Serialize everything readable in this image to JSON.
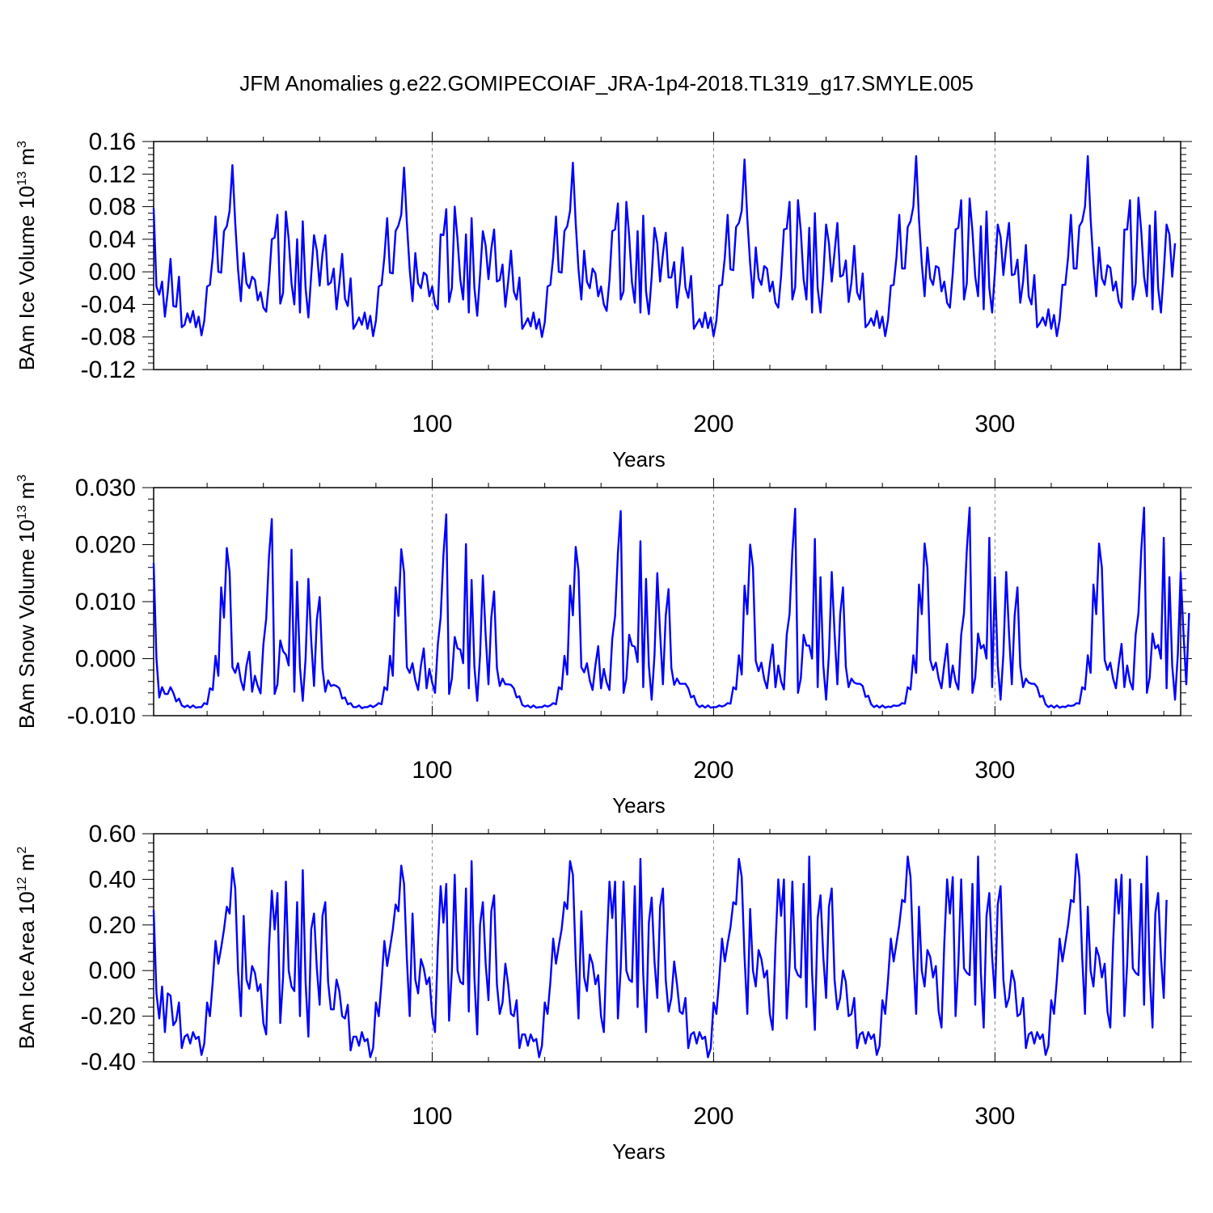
{
  "figure": {
    "title": "JFM Anomalies g.e22.GOMIPECOIAF_JRA-1p4-2018.TL319_g17.SMYLE.005"
  },
  "colors": {
    "series": "#0000ff",
    "axis": "#000000",
    "reference_lines": "#888888"
  },
  "chart_data": [
    {
      "type": "line",
      "xlabel": "Years",
      "ylabel": "BAm Ice Volume 10",
      "ylabel_exp": "13",
      "ylabel_unit": " m",
      "ylabel_unit_exp": "3",
      "xlim": [
        1,
        366
      ],
      "ylim": [
        -0.12,
        0.16
      ],
      "x_ticks": [
        100,
        200,
        300
      ],
      "x_tick_labels": [
        "100",
        "200",
        "300"
      ],
      "y_ticks": [
        -0.12,
        -0.08,
        -0.04,
        0.0,
        0.04,
        0.08,
        0.12,
        0.16
      ],
      "y_tick_labels": [
        "-0.12",
        "-0.08",
        "-0.04",
        "0.00",
        "0.04",
        "0.08",
        "0.12",
        "0.16"
      ],
      "reference_x": [
        100,
        200,
        300
      ],
      "grid": false,
      "x_start": 1,
      "values": [
        0.078,
        -0.018,
        -0.028,
        -0.012,
        -0.055,
        -0.025,
        0.016,
        -0.042,
        -0.043,
        -0.006,
        -0.068,
        -0.065,
        -0.051,
        -0.062,
        -0.048,
        -0.068,
        -0.055,
        -0.078,
        -0.06,
        -0.018,
        -0.016,
        0.018,
        0.068,
        0.0,
        -0.001,
        0.05,
        0.056,
        0.075,
        0.131,
        0.06,
        0.003,
        -0.036,
        0.023,
        -0.014,
        -0.02,
        -0.006,
        -0.01,
        -0.035,
        -0.025,
        -0.044,
        -0.049,
        -0.012,
        0.04,
        0.042,
        0.07,
        -0.039,
        -0.026,
        0.074,
        0.04,
        -0.014,
        -0.04,
        0.04,
        -0.05,
        0.062,
        -0.02,
        -0.056,
        -0.004,
        0.045,
        0.026,
        -0.017,
        0.022,
        0.045,
        -0.016,
        -0.013,
        0.004,
        -0.046,
        -0.014,
        0.022,
        -0.033,
        -0.042,
        -0.008,
        -0.07,
        -0.064,
        -0.056,
        -0.065,
        -0.05,
        -0.07,
        -0.054,
        -0.079,
        -0.06,
        -0.018,
        -0.016,
        0.018,
        0.066,
        -0.001,
        -0.002,
        0.05,
        0.057,
        0.07,
        0.128,
        0.06,
        0.003,
        -0.036,
        0.023,
        -0.014,
        -0.02,
        -0.001,
        -0.004,
        -0.03,
        -0.018,
        -0.04,
        -0.046,
        0.046,
        0.045,
        0.077,
        -0.037,
        -0.02,
        0.08,
        0.04,
        -0.01,
        -0.034,
        0.046,
        -0.05,
        0.066,
        -0.02,
        -0.054,
        -0.004,
        0.05,
        0.032,
        -0.009,
        0.028,
        0.052,
        -0.012,
        -0.01,
        0.009,
        -0.043,
        -0.012,
        0.026,
        -0.024,
        -0.034,
        -0.007,
        -0.07,
        -0.064,
        -0.057,
        -0.067,
        -0.05,
        -0.07,
        -0.058,
        -0.08,
        -0.062,
        -0.018,
        -0.016,
        0.018,
        0.068,
        0.0,
        -0.001,
        0.05,
        0.056,
        0.075,
        0.134,
        0.06,
        0.003,
        -0.034,
        0.026,
        -0.012,
        -0.02,
        0.004,
        -0.002,
        -0.03,
        -0.018,
        -0.04,
        -0.048,
        -0.01,
        0.05,
        0.052,
        0.084,
        -0.034,
        -0.024,
        0.086,
        0.044,
        -0.013,
        -0.038,
        0.05,
        -0.05,
        0.069,
        -0.024,
        -0.052,
        -0.006,
        0.054,
        0.035,
        -0.012,
        0.022,
        0.048,
        -0.007,
        -0.007,
        0.012,
        -0.044,
        -0.014,
        0.03,
        -0.019,
        -0.032,
        -0.005,
        -0.07,
        -0.064,
        -0.058,
        -0.068,
        -0.05,
        -0.069,
        -0.056,
        -0.079,
        -0.06,
        -0.017,
        -0.016,
        0.018,
        0.07,
        0.003,
        0.002,
        0.055,
        0.06,
        0.075,
        0.138,
        0.065,
        0.01,
        -0.032,
        0.03,
        -0.008,
        -0.016,
        0.007,
        0.004,
        -0.024,
        -0.012,
        -0.038,
        -0.044,
        -0.005,
        0.052,
        0.053,
        0.086,
        -0.034,
        -0.019,
        0.088,
        0.05,
        -0.009,
        -0.034,
        0.054,
        -0.05,
        0.072,
        -0.02,
        -0.05,
        -0.004,
        0.058,
        0.035,
        -0.012,
        0.024,
        0.06,
        -0.006,
        -0.004,
        0.014,
        -0.037,
        -0.013,
        0.032,
        -0.025,
        -0.034,
        -0.002,
        -0.068,
        -0.064,
        -0.057,
        -0.066,
        -0.048,
        -0.069,
        -0.055,
        -0.079,
        -0.059,
        -0.017,
        -0.016,
        0.018,
        0.07,
        0.004,
        0.004,
        0.055,
        0.062,
        0.08,
        0.142,
        0.065,
        0.01,
        -0.03,
        0.03,
        -0.008,
        -0.016,
        0.007,
        0.005,
        -0.024,
        -0.012,
        -0.038,
        -0.044,
        -0.002,
        0.052,
        0.054,
        0.088,
        -0.034,
        -0.014,
        0.09,
        0.05,
        -0.006,
        -0.03,
        0.056,
        -0.046,
        0.074,
        -0.02,
        -0.05,
        0.0,
        0.058,
        0.043,
        -0.004,
        0.03,
        0.06,
        -0.004,
        -0.003,
        0.015,
        -0.038,
        -0.012,
        0.033,
        -0.03,
        -0.04,
        -0.004,
        -0.068,
        -0.063,
        -0.056,
        -0.066,
        -0.046,
        -0.07,
        -0.053,
        -0.079,
        -0.059,
        -0.016,
        -0.016,
        0.018,
        0.07,
        0.004,
        0.004,
        0.056,
        0.062,
        0.08,
        0.142,
        0.065,
        0.01,
        -0.03,
        0.03,
        -0.008,
        -0.016,
        0.008,
        0.005,
        -0.023,
        -0.012,
        -0.036,
        -0.044,
        0.052,
        0.052,
        0.088,
        -0.034,
        -0.014,
        0.091,
        0.05,
        -0.006,
        -0.03,
        0.057,
        -0.046,
        0.074,
        -0.02,
        -0.05,
        0.0,
        0.058,
        0.046,
        -0.006,
        0.035
      ]
    },
    {
      "type": "line",
      "xlabel": "Years",
      "ylabel": "BAm Snow Volume 10",
      "ylabel_exp": "13",
      "ylabel_unit": " m",
      "ylabel_unit_exp": "3",
      "xlim": [
        1,
        366
      ],
      "ylim": [
        -0.01,
        0.03
      ],
      "x_ticks": [
        100,
        200,
        300
      ],
      "x_tick_labels": [
        "100",
        "200",
        "300"
      ],
      "y_ticks": [
        -0.01,
        0.0,
        0.01,
        0.02,
        0.03
      ],
      "y_tick_labels": [
        "-0.010",
        "0.000",
        "0.010",
        "0.020",
        "0.030"
      ],
      "reference_x": [
        100,
        200,
        300
      ],
      "grid": false,
      "x_start": 1,
      "values": [
        0.0168,
        0.0,
        -0.0068,
        -0.005,
        -0.0062,
        -0.0062,
        -0.005,
        -0.006,
        -0.0075,
        -0.007,
        -0.0082,
        -0.0085,
        -0.0082,
        -0.0086,
        -0.0082,
        -0.0086,
        -0.0085,
        -0.0085,
        -0.0078,
        -0.008,
        -0.0052,
        -0.0055,
        0.0005,
        -0.003,
        0.0125,
        0.0072,
        0.0194,
        0.0152,
        -0.0015,
        -0.0025,
        -0.0008,
        -0.0038,
        -0.0055,
        -0.0012,
        0.0012,
        -0.0058,
        -0.003,
        -0.0048,
        -0.0061,
        0.0025,
        0.007,
        0.018,
        0.0245,
        -0.0062,
        -0.0045,
        0.0032,
        0.0013,
        0.0007,
        -0.0012,
        0.0191,
        -0.0058,
        0.0135,
        -0.0015,
        -0.0074,
        0.0,
        0.014,
        0.0032,
        -0.0048,
        0.0068,
        0.0108,
        -0.0017,
        -0.0058,
        -0.0038,
        -0.0048,
        -0.0046,
        -0.0048,
        -0.0052,
        -0.007,
        -0.0068,
        -0.008,
        -0.0078,
        -0.0085,
        -0.0085,
        -0.0082,
        -0.0087,
        -0.0085,
        -0.0085,
        -0.0082,
        -0.0085,
        -0.0082,
        -0.0078,
        -0.008,
        -0.005,
        -0.0055,
        0.0005,
        -0.003,
        0.0125,
        0.0075,
        0.0192,
        0.0152,
        -0.0015,
        -0.0025,
        -0.0008,
        -0.0038,
        -0.0055,
        -0.0012,
        0.0018,
        -0.0052,
        -0.0018,
        -0.0042,
        -0.006,
        0.0025,
        0.0072,
        0.0182,
        0.0253,
        -0.0062,
        -0.0035,
        0.0038,
        0.0018,
        0.0016,
        -0.0008,
        0.0201,
        -0.0052,
        0.0138,
        -0.0014,
        -0.0074,
        0.0005,
        0.0146,
        0.0041,
        -0.0045,
        0.0072,
        0.0118,
        -0.0016,
        -0.0048,
        -0.0035,
        -0.0045,
        -0.0045,
        -0.0046,
        -0.0052,
        -0.0068,
        -0.0066,
        -0.0081,
        -0.0084,
        -0.0082,
        -0.0086,
        -0.0082,
        -0.0086,
        -0.0085,
        -0.0085,
        -0.0082,
        -0.0084,
        -0.0082,
        -0.0078,
        -0.008,
        -0.005,
        -0.0054,
        0.0005,
        -0.0028,
        0.0128,
        0.0076,
        0.0196,
        0.0154,
        -0.0015,
        -0.0024,
        -0.0008,
        -0.0038,
        -0.0055,
        -0.0012,
        0.0022,
        -0.0052,
        -0.0018,
        -0.0042,
        -0.0055,
        0.0035,
        0.0075,
        0.0185,
        0.0259,
        -0.006,
        -0.0035,
        0.0042,
        0.0023,
        0.0021,
        -0.0006,
        0.0206,
        -0.005,
        0.014,
        -0.0012,
        -0.0072,
        0.0006,
        0.015,
        0.0044,
        -0.0045,
        0.0075,
        0.0122,
        -0.0016,
        -0.0046,
        -0.0035,
        -0.0044,
        -0.0044,
        -0.0044,
        -0.0052,
        -0.0068,
        -0.0065,
        -0.008,
        -0.0085,
        -0.0082,
        -0.0086,
        -0.0082,
        -0.0086,
        -0.0085,
        -0.0085,
        -0.0082,
        -0.0084,
        -0.0082,
        -0.0078,
        -0.0079,
        -0.005,
        -0.0054,
        0.0006,
        -0.0028,
        0.0128,
        0.0078,
        0.02,
        0.016,
        -0.0004,
        -0.0022,
        -0.0007,
        -0.0036,
        -0.0052,
        -0.001,
        0.0025,
        -0.005,
        -0.0012,
        -0.004,
        -0.0054,
        0.0042,
        0.0078,
        0.0188,
        0.0263,
        -0.006,
        -0.0035,
        0.0042,
        0.0023,
        0.0023,
        0.0,
        0.021,
        -0.005,
        0.0143,
        -0.0012,
        -0.0072,
        0.0008,
        0.0152,
        0.0045,
        -0.0045,
        0.0078,
        0.0125,
        -0.0014,
        -0.005,
        -0.0035,
        -0.0042,
        -0.0044,
        -0.0044,
        -0.0048,
        -0.0067,
        -0.0065,
        -0.008,
        -0.0085,
        -0.0082,
        -0.0086,
        -0.0082,
        -0.0086,
        -0.0084,
        -0.0085,
        -0.0082,
        -0.0083,
        -0.0082,
        -0.0078,
        -0.0079,
        -0.005,
        -0.0054,
        0.0006,
        -0.0025,
        0.013,
        0.0078,
        0.0202,
        0.016,
        -0.0002,
        -0.002,
        -0.0007,
        -0.0035,
        -0.0052,
        -0.001,
        0.0026,
        -0.005,
        -0.0012,
        -0.004,
        -0.0054,
        0.0042,
        0.008,
        0.019,
        0.0265,
        -0.006,
        -0.0033,
        0.0044,
        0.0018,
        0.0024,
        0.0,
        0.0212,
        -0.005,
        0.0143,
        -0.0012,
        -0.0072,
        0.0008,
        0.0152,
        0.0045,
        -0.0045,
        0.0075,
        0.0125,
        -0.0014,
        -0.005,
        -0.0035,
        -0.0042,
        -0.0044,
        -0.0044,
        -0.005,
        -0.0067,
        -0.0065,
        -0.008,
        -0.0085,
        -0.0082,
        -0.0086,
        -0.0082,
        -0.0086,
        -0.0084,
        -0.0085,
        -0.0082,
        -0.0083,
        -0.0082,
        -0.0078,
        -0.0079,
        -0.005,
        -0.0054,
        0.0006,
        -0.0025,
        0.013,
        0.0078,
        0.0202,
        0.016,
        -0.0002,
        -0.002,
        -0.0007,
        -0.0035,
        -0.0052,
        -0.001,
        0.0026,
        -0.005,
        -0.0012,
        -0.004,
        -0.0054,
        0.0042,
        0.008,
        0.019,
        0.0265,
        -0.006,
        -0.0033,
        0.0044,
        0.0018,
        0.0024,
        0.0,
        0.0212,
        -0.0052,
        0.0143,
        -0.0012,
        -0.0072,
        0.0008,
        0.0152,
        0.0045,
        -0.0045,
        0.008
      ]
    },
    {
      "type": "line",
      "xlabel": "Years",
      "ylabel": "BAm Ice Area 10",
      "ylabel_exp": "12",
      "ylabel_unit": " m",
      "ylabel_unit_exp": "2",
      "xlim": [
        1,
        366
      ],
      "ylim": [
        -0.4,
        0.6
      ],
      "x_ticks": [
        100,
        200,
        300
      ],
      "x_tick_labels": [
        "100",
        "200",
        "300"
      ],
      "y_ticks": [
        -0.4,
        -0.2,
        0.0,
        0.2,
        0.4,
        0.6
      ],
      "y_tick_labels": [
        "-0.40",
        "-0.20",
        "0.00",
        "0.20",
        "0.40",
        "0.60"
      ],
      "reference_x": [
        100,
        200,
        300
      ],
      "grid": false,
      "x_start": 1,
      "values": [
        0.265,
        -0.1,
        -0.21,
        -0.07,
        -0.27,
        -0.1,
        -0.11,
        -0.24,
        -0.22,
        -0.14,
        -0.34,
        -0.29,
        -0.28,
        -0.32,
        -0.27,
        -0.3,
        -0.29,
        -0.37,
        -0.32,
        -0.14,
        -0.2,
        -0.05,
        0.13,
        0.03,
        0.1,
        0.18,
        0.28,
        0.25,
        0.45,
        0.36,
        0.0,
        -0.2,
        0.24,
        -0.04,
        -0.08,
        0.02,
        -0.01,
        -0.09,
        -0.06,
        -0.23,
        -0.28,
        0.1,
        0.35,
        0.18,
        0.34,
        -0.23,
        -0.03,
        0.39,
        0.0,
        -0.07,
        -0.09,
        0.3,
        -0.2,
        0.44,
        -0.05,
        -0.29,
        0.18,
        0.25,
        0.01,
        -0.15,
        0.24,
        0.3,
        -0.05,
        -0.17,
        -0.17,
        -0.04,
        -0.09,
        -0.2,
        -0.21,
        -0.15,
        -0.35,
        -0.29,
        -0.29,
        -0.33,
        -0.27,
        -0.31,
        -0.3,
        -0.38,
        -0.34,
        -0.14,
        -0.2,
        -0.05,
        0.13,
        0.02,
        0.1,
        0.18,
        0.29,
        0.26,
        0.46,
        0.38,
        0.05,
        -0.2,
        0.25,
        -0.04,
        -0.1,
        0.05,
        0.01,
        -0.06,
        -0.03,
        -0.2,
        -0.27,
        0.1,
        0.37,
        0.21,
        0.38,
        -0.22,
        0.0,
        0.42,
        0.0,
        -0.05,
        -0.06,
        0.36,
        -0.18,
        0.48,
        -0.03,
        -0.28,
        0.2,
        0.3,
        0.03,
        -0.13,
        0.26,
        0.33,
        -0.06,
        -0.19,
        -0.14,
        0.03,
        -0.06,
        -0.19,
        -0.2,
        -0.13,
        -0.34,
        -0.28,
        -0.28,
        -0.33,
        -0.28,
        -0.31,
        -0.3,
        -0.38,
        -0.33,
        -0.14,
        -0.19,
        -0.05,
        0.14,
        0.03,
        0.11,
        0.18,
        0.3,
        0.27,
        0.48,
        0.42,
        0.05,
        -0.21,
        0.26,
        -0.03,
        -0.09,
        0.07,
        0.03,
        -0.06,
        -0.02,
        -0.2,
        -0.27,
        0.1,
        0.39,
        0.23,
        0.39,
        -0.21,
        0.01,
        0.39,
        0.0,
        -0.04,
        -0.05,
        0.37,
        -0.16,
        0.49,
        -0.02,
        -0.27,
        0.21,
        0.32,
        0.04,
        -0.12,
        0.28,
        0.36,
        -0.04,
        -0.18,
        -0.12,
        0.04,
        -0.06,
        -0.18,
        -0.19,
        -0.12,
        -0.34,
        -0.28,
        -0.27,
        -0.32,
        -0.27,
        -0.3,
        -0.29,
        -0.38,
        -0.34,
        -0.14,
        -0.19,
        -0.04,
        0.14,
        0.04,
        0.12,
        0.19,
        0.3,
        0.29,
        0.49,
        0.41,
        0.06,
        -0.19,
        0.27,
        0.0,
        -0.07,
        0.09,
        0.05,
        -0.03,
        0.0,
        -0.19,
        -0.26,
        0.11,
        0.4,
        0.24,
        0.4,
        -0.21,
        0.02,
        0.39,
        0.01,
        -0.02,
        -0.03,
        0.38,
        -0.16,
        0.5,
        -0.01,
        -0.26,
        0.23,
        0.33,
        0.06,
        -0.12,
        0.28,
        0.36,
        -0.04,
        -0.17,
        -0.12,
        0.0,
        -0.05,
        -0.2,
        -0.19,
        -0.12,
        -0.34,
        -0.28,
        -0.27,
        -0.32,
        -0.27,
        -0.3,
        -0.28,
        -0.37,
        -0.33,
        -0.13,
        -0.19,
        -0.04,
        0.14,
        0.04,
        0.12,
        0.2,
        0.31,
        0.3,
        0.5,
        0.41,
        0.06,
        -0.19,
        0.28,
        0.0,
        -0.07,
        0.09,
        0.06,
        -0.03,
        0.02,
        -0.18,
        -0.25,
        0.12,
        0.4,
        0.25,
        0.41,
        -0.2,
        0.03,
        0.4,
        0.01,
        -0.01,
        -0.02,
        0.38,
        -0.15,
        0.5,
        -0.01,
        -0.25,
        0.24,
        0.34,
        0.06,
        -0.12,
        0.29,
        0.37,
        -0.04,
        -0.16,
        -0.12,
        0.0,
        -0.05,
        -0.2,
        -0.19,
        -0.12,
        -0.34,
        -0.28,
        -0.27,
        -0.32,
        -0.27,
        -0.3,
        -0.28,
        -0.37,
        -0.33,
        -0.13,
        -0.19,
        -0.04,
        0.14,
        0.04,
        0.12,
        0.2,
        0.31,
        0.3,
        0.51,
        0.41,
        0.06,
        -0.19,
        0.28,
        0.0,
        -0.07,
        0.1,
        0.06,
        -0.03,
        0.03,
        -0.18,
        -0.25,
        0.12,
        0.4,
        0.25,
        0.42,
        -0.2,
        0.03,
        0.4,
        0.01,
        -0.01,
        -0.02,
        0.38,
        -0.15,
        0.5,
        -0.01,
        -0.25,
        0.25,
        0.34,
        0.06,
        -0.12,
        0.31
      ]
    }
  ]
}
